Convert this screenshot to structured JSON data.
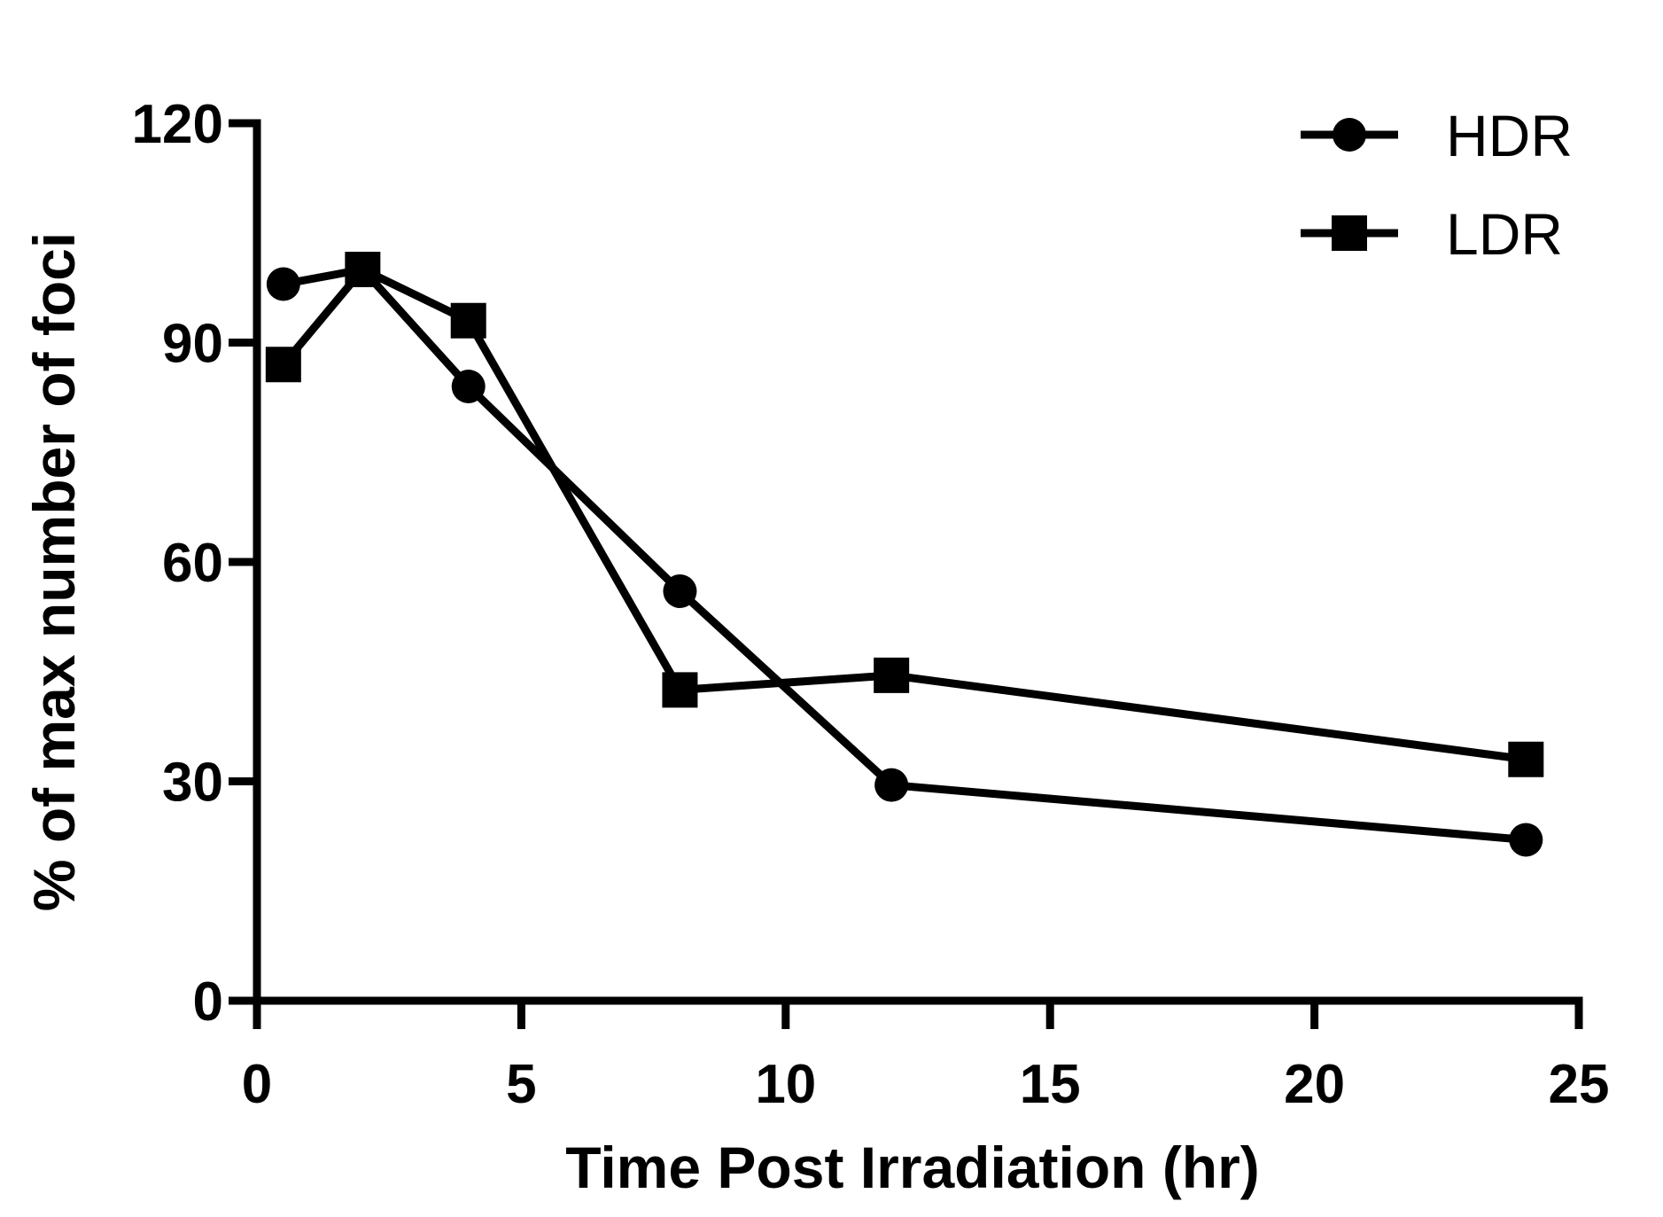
{
  "chart_data": {
    "type": "line",
    "title": "",
    "xlabel": "Time Post Irradiation (hr)",
    "ylabel": "% of max number of foci",
    "xlim": [
      0,
      25
    ],
    "ylim": [
      0,
      120
    ],
    "x_ticks": [
      0,
      5,
      10,
      15,
      20,
      25
    ],
    "y_ticks": [
      0,
      30,
      60,
      90,
      120
    ],
    "x_tick_labels": [
      "0",
      "5",
      "10",
      "15",
      "20",
      "25"
    ],
    "y_tick_labels": [
      "0",
      "30",
      "60",
      "90",
      "120"
    ],
    "grid": false,
    "legend_position": "top-right",
    "series": [
      {
        "name": "HDR",
        "marker": "circle",
        "color": "#000000",
        "x": [
          0.5,
          2,
          4,
          8,
          12,
          24
        ],
        "y": [
          98,
          100,
          84,
          56,
          29.5,
          22
        ]
      },
      {
        "name": "LDR",
        "marker": "square",
        "color": "#000000",
        "x": [
          0.5,
          2,
          4,
          8,
          12,
          24
        ],
        "y": [
          87,
          100,
          93,
          42.5,
          44.5,
          33
        ]
      }
    ]
  }
}
